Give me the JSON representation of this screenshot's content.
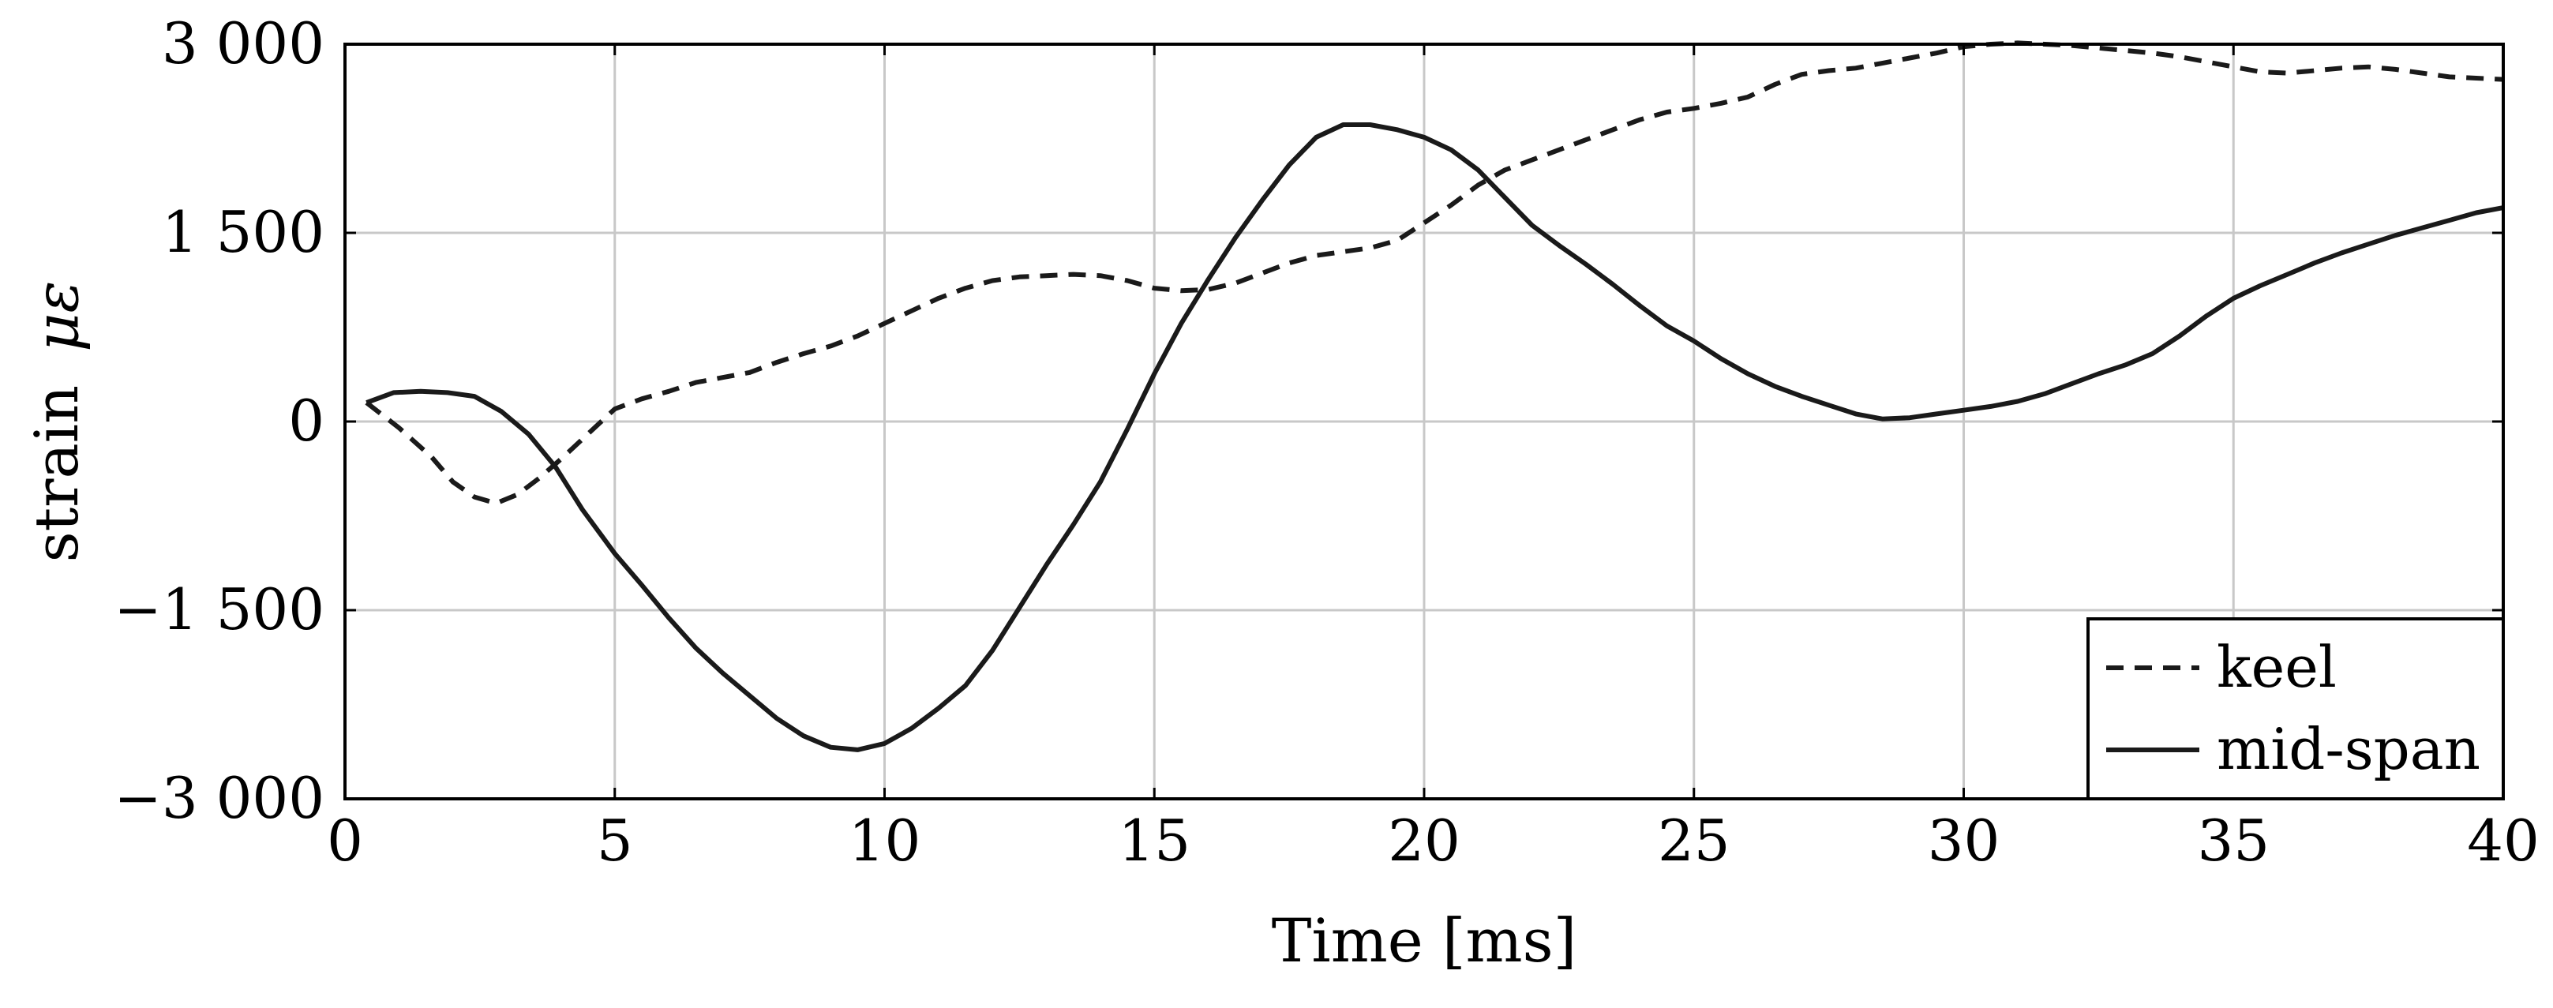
{
  "chart_data": {
    "type": "line",
    "title": "",
    "xlabel": "Time [ms]",
    "ylabel": "strain",
    "ylabel_symbol": "με",
    "xlim": [
      0,
      40
    ],
    "ylim": [
      -3000,
      3000
    ],
    "x_ticks": [
      0,
      5,
      10,
      15,
      20,
      25,
      30,
      35,
      40
    ],
    "x_tick_labels": [
      "0",
      "5",
      "10",
      "15",
      "20",
      "25",
      "30",
      "35",
      "40"
    ],
    "y_ticks": [
      -3000,
      -1500,
      0,
      1500,
      3000
    ],
    "y_tick_labels": [
      "−3 000",
      "−1 500",
      "0",
      "1 500",
      "3 000"
    ],
    "grid": true,
    "legend_position": "bottom-right",
    "series": [
      {
        "name": "keel",
        "line_style": "dashed",
        "color": "#1a1a1a",
        "x": [
          0.4,
          1.0,
          1.6,
          2.0,
          2.4,
          2.8,
          3.2,
          3.6,
          4.0,
          4.5,
          5.0,
          5.5,
          6.0,
          6.5,
          7.0,
          7.5,
          8.0,
          8.5,
          9.0,
          9.5,
          10.0,
          10.5,
          11.0,
          11.5,
          12.0,
          12.5,
          13.0,
          13.5,
          14.0,
          14.5,
          15.0,
          15.5,
          16.0,
          16.5,
          17.0,
          17.5,
          18.0,
          18.5,
          19.0,
          19.5,
          20.0,
          20.5,
          21.0,
          21.5,
          22.0,
          22.5,
          23.0,
          23.5,
          24.0,
          24.5,
          25.0,
          25.5,
          26.0,
          26.5,
          27.0,
          27.5,
          28.0,
          28.5,
          29.0,
          29.5,
          30.0,
          30.5,
          31.0,
          31.5,
          32.0,
          32.5,
          33.0,
          33.5,
          34.0,
          34.5,
          35.0,
          35.5,
          36.0,
          36.5,
          37.0,
          37.5,
          38.0,
          38.5,
          39.0,
          39.5,
          40.0
        ],
        "y": [
          150,
          -50,
          -280,
          -480,
          -600,
          -650,
          -580,
          -450,
          -300,
          -100,
          100,
          180,
          240,
          310,
          350,
          390,
          470,
          540,
          600,
          680,
          780,
          880,
          980,
          1060,
          1120,
          1150,
          1160,
          1170,
          1160,
          1120,
          1060,
          1040,
          1050,
          1100,
          1180,
          1260,
          1320,
          1350,
          1380,
          1440,
          1580,
          1720,
          1880,
          2000,
          2080,
          2160,
          2240,
          2320,
          2400,
          2460,
          2490,
          2530,
          2580,
          2680,
          2760,
          2790,
          2810,
          2850,
          2890,
          2930,
          2980,
          3000,
          3010,
          3000,
          2990,
          2970,
          2950,
          2930,
          2900,
          2860,
          2820,
          2780,
          2770,
          2790,
          2810,
          2820,
          2800,
          2770,
          2740,
          2730,
          2720
        ]
      },
      {
        "name": "mid-span",
        "line_style": "solid",
        "color": "#1a1a1a",
        "x": [
          0.4,
          0.9,
          1.4,
          1.9,
          2.4,
          2.9,
          3.4,
          3.9,
          4.4,
          5.0,
          5.5,
          6.0,
          6.5,
          7.0,
          7.5,
          8.0,
          8.5,
          9.0,
          9.5,
          10.0,
          10.5,
          11.0,
          11.5,
          12.0,
          12.5,
          13.0,
          13.5,
          14.0,
          14.5,
          15.0,
          15.5,
          16.0,
          16.5,
          17.0,
          17.5,
          18.0,
          18.5,
          19.0,
          19.5,
          20.0,
          20.5,
          21.0,
          21.5,
          22.0,
          22.5,
          23.0,
          23.5,
          24.0,
          24.5,
          25.0,
          25.5,
          26.0,
          26.5,
          27.0,
          27.5,
          28.0,
          28.5,
          29.0,
          29.5,
          30.0,
          30.5,
          31.0,
          31.5,
          32.0,
          32.5,
          33.0,
          33.5,
          34.0,
          34.5,
          35.0,
          35.5,
          36.0,
          36.5,
          37.0,
          37.5,
          38.0,
          38.5,
          39.0,
          39.5,
          40.0
        ],
        "y": [
          150,
          230,
          240,
          230,
          200,
          80,
          -100,
          -360,
          -700,
          -1050,
          -1300,
          -1560,
          -1800,
          -2000,
          -2180,
          -2360,
          -2500,
          -2590,
          -2610,
          -2560,
          -2440,
          -2280,
          -2100,
          -1820,
          -1480,
          -1140,
          -820,
          -480,
          -60,
          380,
          780,
          1130,
          1460,
          1760,
          2040,
          2260,
          2360,
          2360,
          2320,
          2260,
          2160,
          2000,
          1780,
          1560,
          1400,
          1250,
          1090,
          920,
          760,
          640,
          500,
          380,
          280,
          200,
          130,
          60,
          20,
          30,
          60,
          90,
          120,
          160,
          220,
          300,
          380,
          450,
          540,
          680,
          840,
          980,
          1080,
          1170,
          1260,
          1340,
          1410,
          1480,
          1540,
          1600,
          1660,
          1700
        ]
      }
    ]
  }
}
